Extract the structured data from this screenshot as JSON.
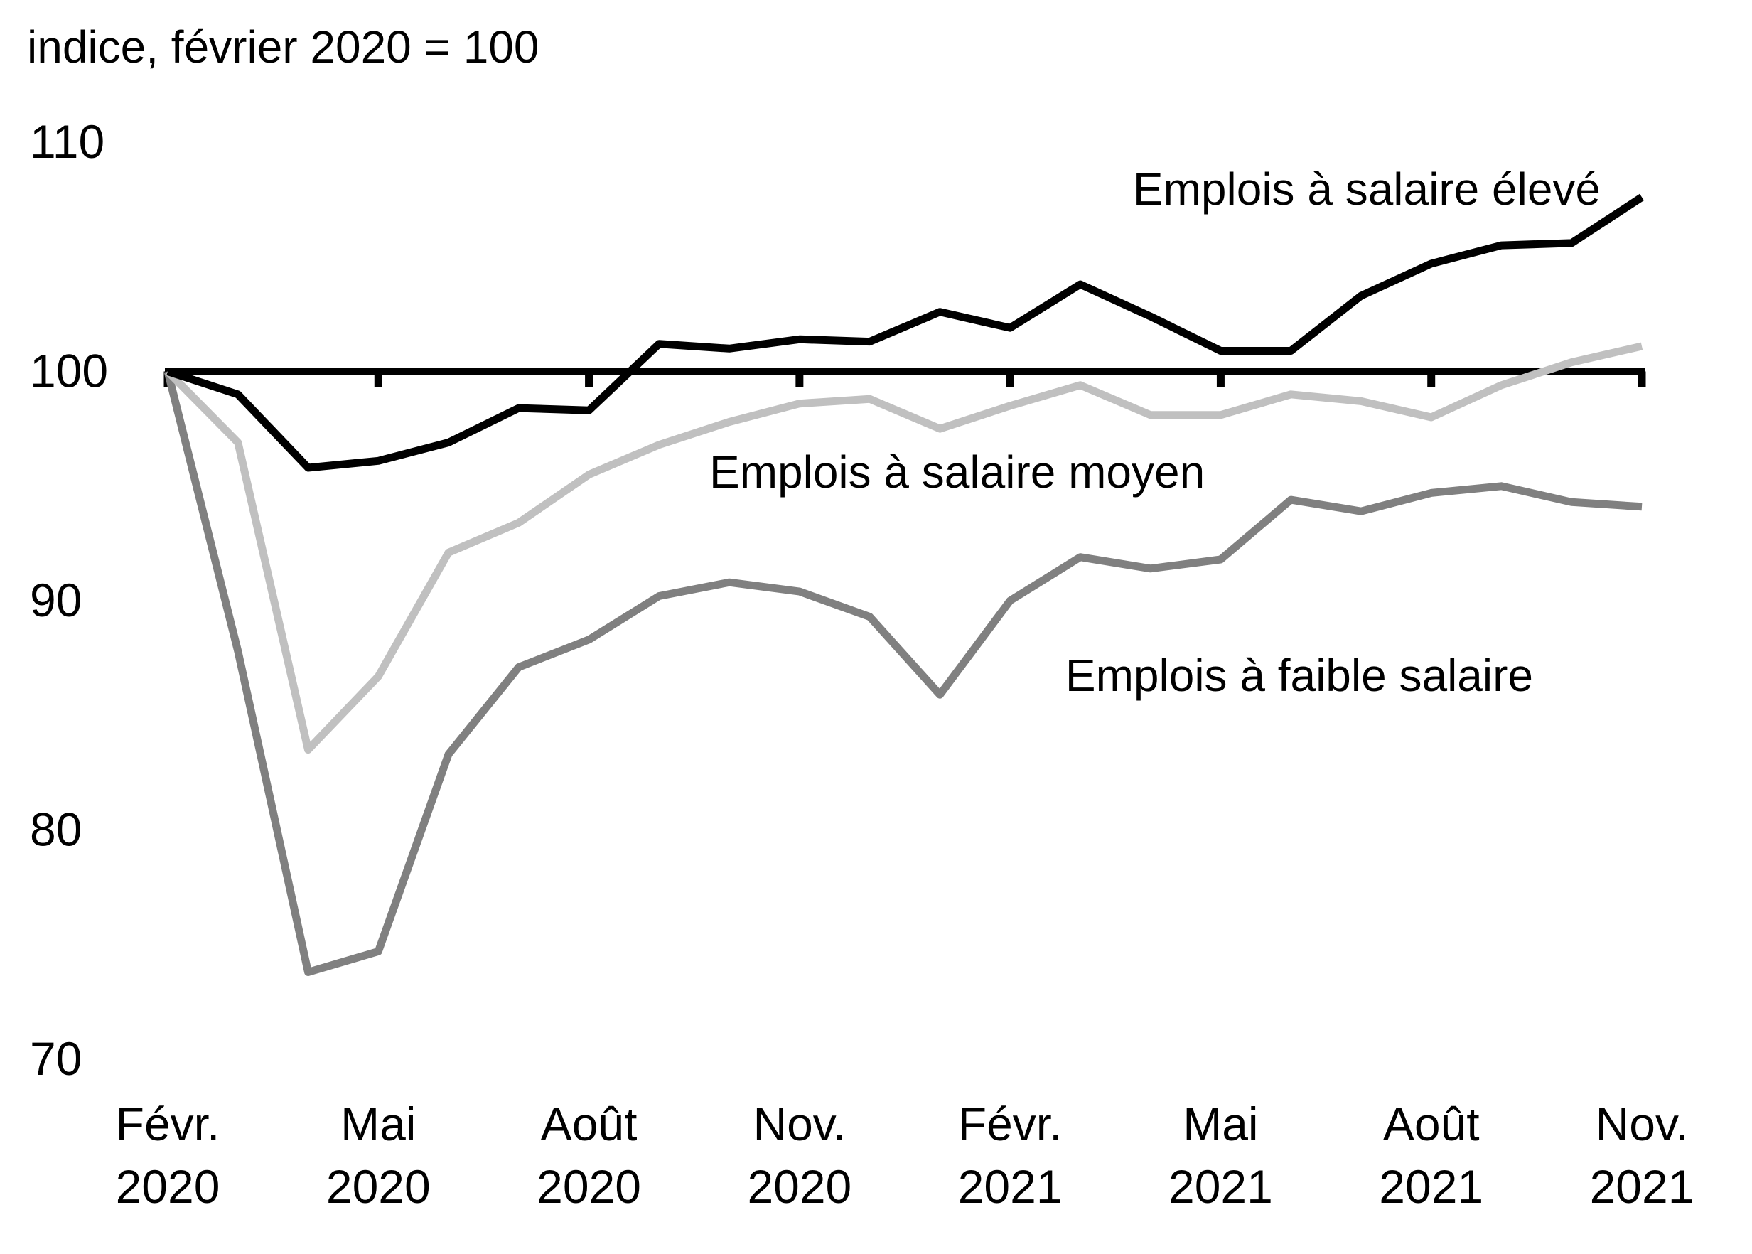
{
  "chart_data": {
    "type": "line",
    "title": "",
    "ylabel": "indice, février 2020 = 100",
    "xlabel": "",
    "ylim": [
      70,
      110
    ],
    "yticks": [
      70,
      80,
      90,
      100,
      110
    ],
    "baseline": 100,
    "grid": false,
    "legend": "inline labels",
    "x": [
      "2020-02",
      "2020-03",
      "2020-04",
      "2020-05",
      "2020-06",
      "2020-07",
      "2020-08",
      "2020-09",
      "2020-10",
      "2020-11",
      "2020-12",
      "2021-01",
      "2021-02",
      "2021-03",
      "2021-04",
      "2021-05",
      "2021-06",
      "2021-07",
      "2021-08",
      "2021-09",
      "2021-10",
      "2021-11"
    ],
    "xtick_labels": [
      {
        "x": "2020-02",
        "lines": [
          "Févr.",
          "2020"
        ]
      },
      {
        "x": "2020-05",
        "lines": [
          "Mai",
          "2020"
        ]
      },
      {
        "x": "2020-08",
        "lines": [
          "Août",
          "2020"
        ]
      },
      {
        "x": "2020-11",
        "lines": [
          "Nov.",
          "2020"
        ]
      },
      {
        "x": "2021-02",
        "lines": [
          "Févr.",
          "2021"
        ]
      },
      {
        "x": "2021-05",
        "lines": [
          "Mai",
          "2021"
        ]
      },
      {
        "x": "2021-08",
        "lines": [
          "Août",
          "2021"
        ]
      },
      {
        "x": "2021-11",
        "lines": [
          "Nov.",
          "2021"
        ]
      }
    ],
    "series": [
      {
        "name": "Emplois à faible salaire",
        "color": "#808080",
        "values": [
          100,
          87.8,
          73.8,
          74.7,
          83.3,
          87.1,
          88.3,
          90.2,
          90.8,
          90.4,
          89.3,
          85.9,
          90.0,
          91.9,
          91.4,
          91.8,
          94.4,
          93.9,
          94.7,
          95.0,
          94.3,
          94.1
        ]
      },
      {
        "name": "Emplois à salaire moyen",
        "color": "#c0c0c0",
        "values": [
          100,
          96.9,
          83.5,
          86.7,
          92.1,
          93.4,
          95.5,
          96.8,
          97.8,
          98.6,
          98.8,
          97.5,
          98.5,
          99.4,
          98.1,
          98.1,
          99.0,
          98.7,
          98.0,
          99.4,
          100.4,
          101.1
        ]
      },
      {
        "name": "Emplois à salaire élevé",
        "color": "#000000",
        "values": [
          100,
          99.0,
          95.8,
          96.1,
          96.9,
          98.4,
          98.3,
          101.2,
          101.0,
          101.4,
          101.3,
          102.6,
          101.9,
          103.8,
          102.4,
          100.9,
          100.9,
          103.3,
          104.7,
          105.5,
          105.6,
          107.6
        ]
      }
    ]
  }
}
